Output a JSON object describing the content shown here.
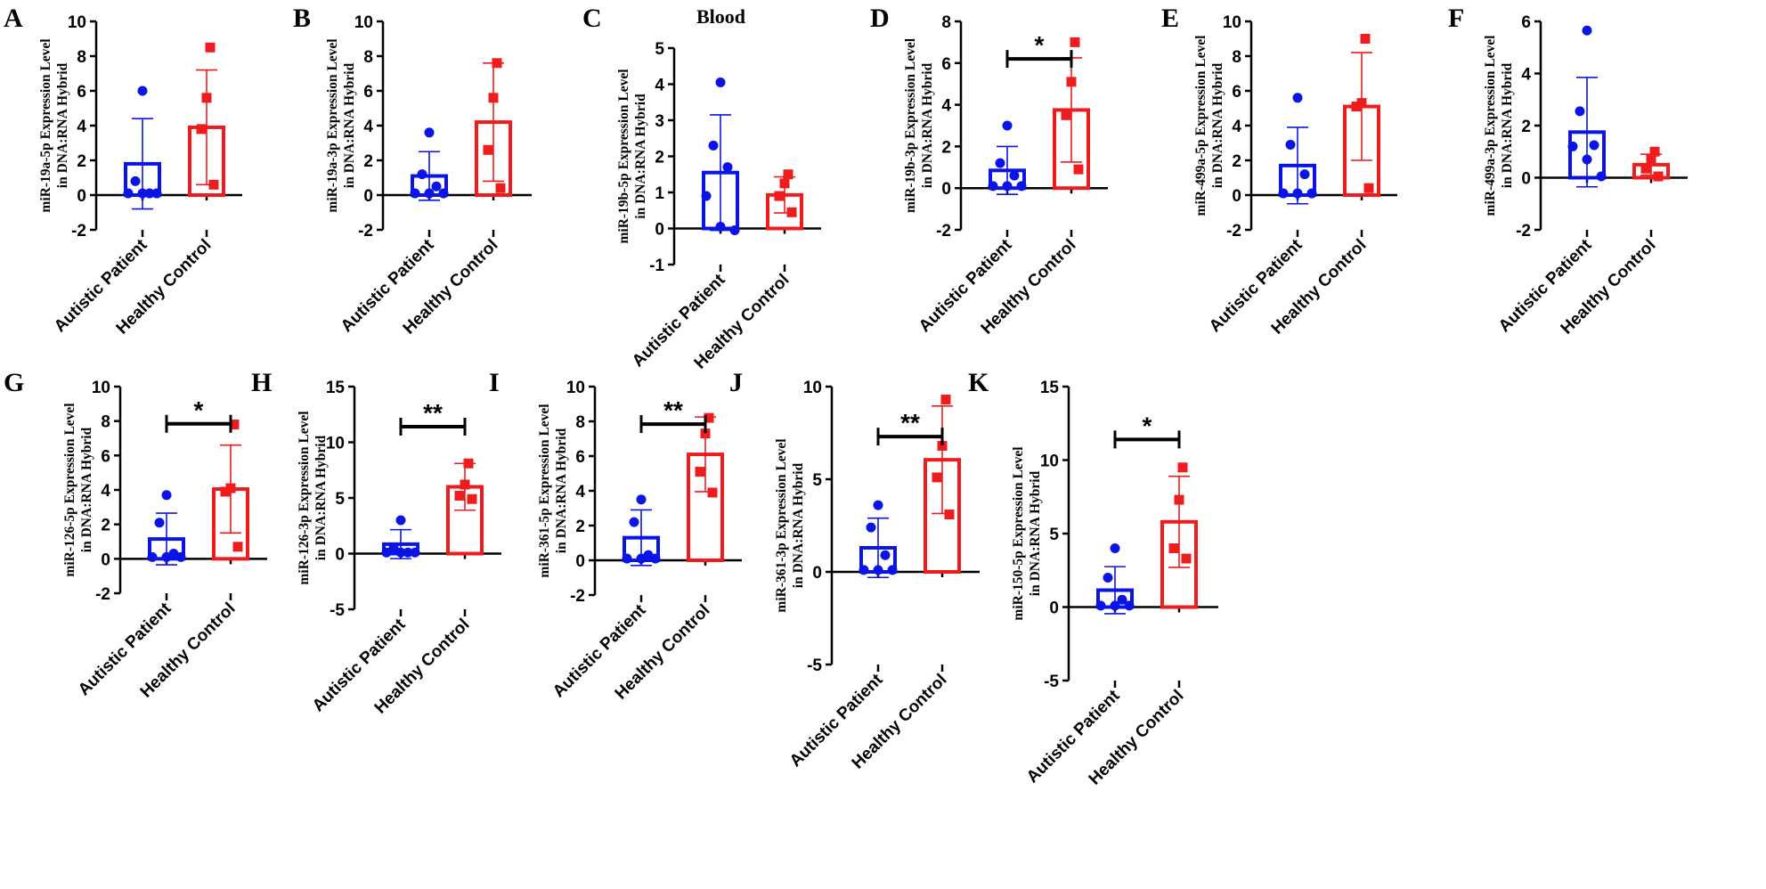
{
  "colors": {
    "patient": "#0a14e6",
    "control": "#ee1c1c",
    "axis": "#000000"
  },
  "chart_data": [
    {
      "label": "A",
      "title": "",
      "type": "bar",
      "ylabel": [
        "miR-19a-5p Expression Level",
        "in DNA:RNA Hybrid"
      ],
      "ylim": [
        -2,
        10
      ],
      "yticks": [
        -2,
        0,
        2,
        4,
        6,
        8,
        10
      ],
      "yticklabels": [
        "-2",
        "0",
        "2",
        "4",
        "6",
        "8",
        "10"
      ],
      "categories": [
        "Autistic Patient",
        "Healthy Control"
      ],
      "series": [
        {
          "name": "Autistic Patient",
          "mean": 1.8,
          "sd": 2.6,
          "points": [
            6.0,
            0.8,
            0.1,
            0.1,
            0.1,
            0.1
          ]
        },
        {
          "name": "Healthy Control",
          "mean": 3.9,
          "sd": 3.3,
          "points": [
            8.5,
            5.6,
            3.8,
            0.6
          ]
        }
      ],
      "significance": ""
    },
    {
      "label": "B",
      "title": "",
      "type": "bar",
      "ylabel": [
        "miR-19a-3p Expression Level",
        "in DNA:RNA Hybrid"
      ],
      "ylim": [
        -2,
        10
      ],
      "yticks": [
        -2,
        0,
        2,
        4,
        6,
        8,
        10
      ],
      "yticklabels": [
        "-2",
        "0",
        "2",
        "4",
        "6",
        "8",
        "10"
      ],
      "categories": [
        "Autistic Patient",
        "Healthy Control"
      ],
      "series": [
        {
          "name": "Autistic Patient",
          "mean": 1.1,
          "sd": 1.4,
          "points": [
            3.6,
            1.2,
            0.5,
            0.1,
            0.1,
            0.1
          ]
        },
        {
          "name": "Healthy Control",
          "mean": 4.2,
          "sd": 3.4,
          "points": [
            7.6,
            5.6,
            2.6,
            0.4
          ]
        }
      ],
      "significance": ""
    },
    {
      "label": "C",
      "title": "Blood",
      "type": "bar",
      "ylabel": [
        "miR-19b-5p Expression Level",
        "in DNA:RNA Hybrid"
      ],
      "ylim": [
        -1,
        5
      ],
      "yticks": [
        -1,
        0,
        1,
        2,
        3,
        4,
        5
      ],
      "yticklabels": [
        "-1",
        "0",
        "1",
        "2",
        "3",
        "4",
        "5"
      ],
      "categories": [
        "Autistic Patient",
        "Healthy Control"
      ],
      "series": [
        {
          "name": "Autistic Patient",
          "mean": 1.55,
          "sd": 1.6,
          "points": [
            4.05,
            2.3,
            1.7,
            0.9,
            0.05,
            -0.05
          ]
        },
        {
          "name": "Healthy Control",
          "mean": 0.93,
          "sd": 0.5,
          "points": [
            1.5,
            1.25,
            0.9,
            0.45
          ]
        }
      ],
      "significance": ""
    },
    {
      "label": "D",
      "title": "",
      "type": "bar",
      "ylabel": [
        "miR-19b-3p Expression Level",
        "in DNA:RNA Hybrid"
      ],
      "ylim": [
        -2,
        8
      ],
      "yticks": [
        -2,
        0,
        2,
        4,
        6,
        8
      ],
      "yticklabels": [
        "-2",
        "0",
        "2",
        "4",
        "6",
        "8"
      ],
      "categories": [
        "Autistic Patient",
        "Healthy Control"
      ],
      "series": [
        {
          "name": "Autistic Patient",
          "mean": 0.85,
          "sd": 1.15,
          "points": [
            3.0,
            1.2,
            0.6,
            0.1,
            0.1,
            0.1
          ]
        },
        {
          "name": "Healthy Control",
          "mean": 3.75,
          "sd": 2.5,
          "points": [
            7.0,
            5.1,
            3.5,
            0.9
          ]
        }
      ],
      "significance": "*"
    },
    {
      "label": "E",
      "title": "",
      "type": "bar",
      "ylabel": [
        "miR-499a-5p Expression Level",
        "in DNA:RNA Hybrid"
      ],
      "ylim": [
        -2,
        10
      ],
      "yticks": [
        -2,
        0,
        2,
        4,
        6,
        8,
        10
      ],
      "yticklabels": [
        "-2",
        "0",
        "2",
        "4",
        "6",
        "8",
        "10"
      ],
      "categories": [
        "Autistic Patient",
        "Healthy Control"
      ],
      "series": [
        {
          "name": "Autistic Patient",
          "mean": 1.7,
          "sd": 2.2,
          "points": [
            5.6,
            2.9,
            1.2,
            0.1,
            0.1,
            0.1
          ]
        },
        {
          "name": "Healthy Control",
          "mean": 5.1,
          "sd": 3.1,
          "points": [
            9.0,
            5.3,
            5.1,
            0.4
          ]
        }
      ],
      "significance": ""
    },
    {
      "label": "F",
      "title": "",
      "type": "bar",
      "ylabel": [
        "miR-499a-3p Expression Level",
        "in DNA:RNA Hybrid"
      ],
      "ylim": [
        -2,
        6
      ],
      "yticks": [
        -2,
        0,
        2,
        4,
        6
      ],
      "yticklabels": [
        "-2",
        "0",
        "2",
        "4",
        "6"
      ],
      "categories": [
        "Autistic Patient",
        "Healthy Control"
      ],
      "series": [
        {
          "name": "Autistic Patient",
          "mean": 1.75,
          "sd": 2.1,
          "points": [
            5.65,
            2.55,
            1.25,
            1.2,
            0.7,
            0.05
          ]
        },
        {
          "name": "Healthy Control",
          "mean": 0.5,
          "sd": 0.4,
          "points": [
            1.0,
            0.7,
            0.35,
            0.05
          ]
        }
      ],
      "significance": ""
    },
    {
      "label": "G",
      "title": "",
      "type": "bar",
      "ylabel": [
        "miR-126-5p Expression Level",
        "in DNA:RNA Hybrid"
      ],
      "ylim": [
        -2,
        10
      ],
      "yticks": [
        -2,
        0,
        2,
        4,
        6,
        8,
        10
      ],
      "yticklabels": [
        "-2",
        "0",
        "2",
        "4",
        "6",
        "8",
        "10"
      ],
      "categories": [
        "Autistic Patient",
        "Healthy Control"
      ],
      "series": [
        {
          "name": "Autistic Patient",
          "mean": 1.15,
          "sd": 1.5,
          "points": [
            3.7,
            2.1,
            0.3,
            0.1,
            0.1,
            0.1
          ]
        },
        {
          "name": "Healthy Control",
          "mean": 4.05,
          "sd": 2.55,
          "points": [
            7.8,
            4.1,
            3.9,
            0.7
          ]
        }
      ],
      "significance": "*"
    },
    {
      "label": "H",
      "title": "",
      "type": "bar",
      "ylabel": [
        "miR-126-3p Expression Level",
        "in DNA:RNA Hybrid"
      ],
      "ylim": [
        -5,
        15
      ],
      "yticks": [
        -5,
        0,
        5,
        10,
        15
      ],
      "yticklabels": [
        "-5",
        "0",
        "5",
        "10",
        "15"
      ],
      "categories": [
        "Autistic Patient",
        "Healthy Control"
      ],
      "series": [
        {
          "name": "Autistic Patient",
          "mean": 0.85,
          "sd": 1.3,
          "points": [
            3.0,
            0.5,
            0.1,
            0.1,
            0.1,
            0.1
          ]
        },
        {
          "name": "Healthy Control",
          "mean": 6.0,
          "sd": 2.1,
          "points": [
            8.1,
            6.2,
            5.2,
            4.9
          ]
        }
      ],
      "significance": "**"
    },
    {
      "label": "I",
      "title": "",
      "type": "bar",
      "ylabel": [
        "miR-361-5p Expression Level",
        "in DNA:RNA Hybrid"
      ],
      "ylim": [
        -2,
        10
      ],
      "yticks": [
        -2,
        0,
        2,
        4,
        6,
        8,
        10
      ],
      "yticklabels": [
        "-2",
        "0",
        "2",
        "4",
        "6",
        "8",
        "10"
      ],
      "categories": [
        "Autistic Patient",
        "Healthy Control"
      ],
      "series": [
        {
          "name": "Autistic Patient",
          "mean": 1.3,
          "sd": 1.6,
          "points": [
            3.5,
            2.2,
            0.3,
            0.1,
            0.1,
            0.1
          ]
        },
        {
          "name": "Healthy Control",
          "mean": 6.1,
          "sd": 2.15,
          "points": [
            8.2,
            7.3,
            5.1,
            3.9
          ]
        }
      ],
      "significance": "**"
    },
    {
      "label": "J",
      "title": "",
      "type": "bar",
      "ylabel": [
        "miR-361-3p Expression Level",
        "in DNA:RNA Hybrid"
      ],
      "ylim": [
        -5,
        10
      ],
      "yticks": [
        -5,
        0,
        5,
        10
      ],
      "yticklabels": [
        "-5",
        "0",
        "5",
        "10"
      ],
      "categories": [
        "Autistic Patient",
        "Healthy Control"
      ],
      "series": [
        {
          "name": "Autistic Patient",
          "mean": 1.3,
          "sd": 1.6,
          "points": [
            3.6,
            2.4,
            0.9,
            0.1,
            0.1,
            0.1
          ]
        },
        {
          "name": "Healthy Control",
          "mean": 6.05,
          "sd": 2.9,
          "points": [
            9.3,
            6.8,
            5.1,
            3.1
          ]
        }
      ],
      "significance": "**"
    },
    {
      "label": "K",
      "title": "",
      "type": "bar",
      "ylabel": [
        "miR-150-5p Expression Level",
        "in DNA:RNA Hybrid"
      ],
      "ylim": [
        -5,
        15
      ],
      "yticks": [
        -5,
        0,
        5,
        10,
        15
      ],
      "yticklabels": [
        "-5",
        "0",
        "5",
        "10",
        "15"
      ],
      "categories": [
        "Autistic Patient",
        "Healthy Control"
      ],
      "series": [
        {
          "name": "Autistic Patient",
          "mean": 1.15,
          "sd": 1.6,
          "points": [
            4.0,
            2.0,
            0.5,
            0.1,
            0.1,
            0.1
          ]
        },
        {
          "name": "Healthy Control",
          "mean": 5.8,
          "sd": 3.1,
          "points": [
            9.5,
            7.3,
            4.0,
            3.3
          ]
        }
      ],
      "significance": "*"
    }
  ]
}
